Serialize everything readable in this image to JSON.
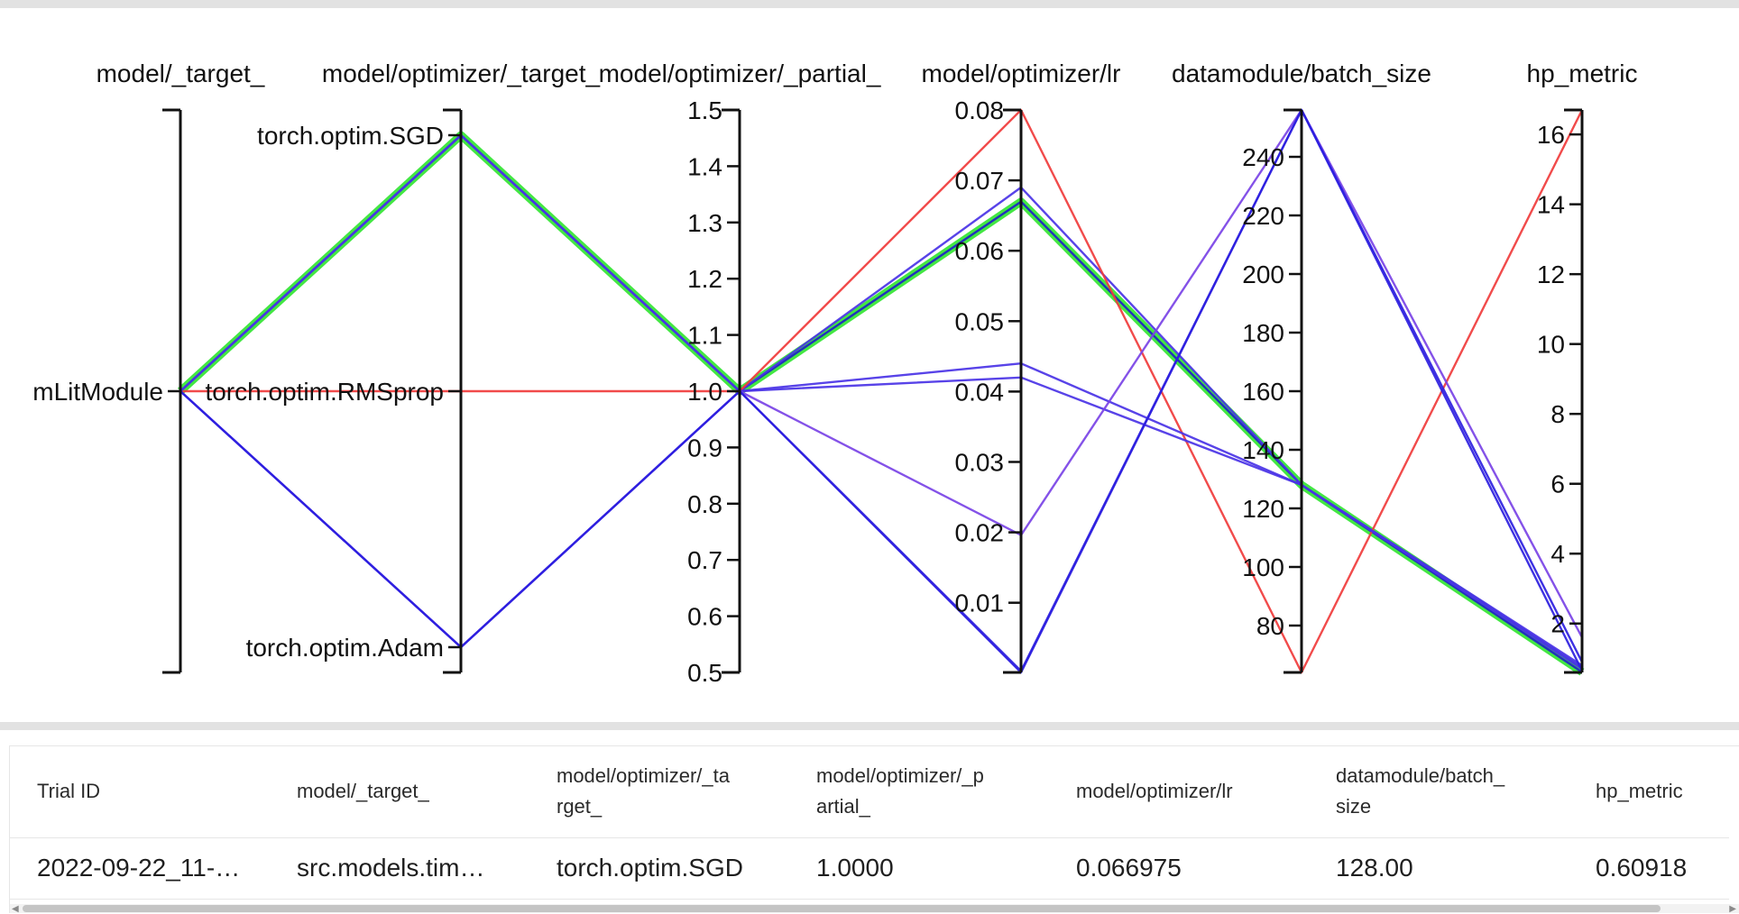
{
  "chart_data": {
    "type": "parallel_coordinates",
    "colors": {
      "highlight": "#39e639",
      "red": "#f03c3c",
      "blue": "#2e1fe0",
      "mid_blue": "#4a33e6",
      "violet": "#7a43e6"
    },
    "axes": [
      {
        "name": "model/_target_",
        "kind": "categorical",
        "categories": [
          "mLitModule"
        ],
        "tick_labels": [
          "mLitModule"
        ]
      },
      {
        "name": "model/optimizer/_target_",
        "kind": "categorical",
        "categories": [
          "torch.optim.Adam",
          "torch.optim.RMSprop",
          "torch.optim.SGD"
        ],
        "tick_labels": [
          "torch.optim.Adam",
          "torch.optim.RMSprop",
          "torch.optim.SGD"
        ]
      },
      {
        "name": "model/optimizer/_partial_",
        "kind": "numeric",
        "range": [
          0.5,
          1.5
        ],
        "tick_labels": [
          "0.5",
          "0.6",
          "0.7",
          "0.8",
          "0.9",
          "1.0",
          "1.1",
          "1.2",
          "1.3",
          "1.4",
          "1.5"
        ]
      },
      {
        "name": "model/optimizer/lr",
        "kind": "numeric",
        "range": [
          0.0001,
          0.08
        ],
        "tick_labels": [
          "0.01",
          "0.02",
          "0.03",
          "0.04",
          "0.05",
          "0.06",
          "0.07",
          "0.08"
        ]
      },
      {
        "name": "datamodule/batch_size",
        "kind": "numeric",
        "range": [
          64,
          256
        ],
        "tick_labels": [
          "80",
          "100",
          "120",
          "140",
          "160",
          "180",
          "200",
          "220",
          "240"
        ]
      },
      {
        "name": "hp_metric",
        "kind": "numeric",
        "range": [
          0.6,
          16.7
        ],
        "tick_labels": [
          "2",
          "4",
          "6",
          "8",
          "10",
          "12",
          "14",
          "16"
        ]
      }
    ],
    "series": [
      {
        "values": [
          "mLitModule",
          "torch.optim.SGD",
          1.0,
          0.066975,
          128,
          0.60918
        ],
        "color": "#39e639",
        "highlight": true
      },
      {
        "values": [
          "mLitModule",
          "torch.optim.SGD",
          1.0,
          0.066975,
          128,
          0.60918
        ],
        "color": "#1f1fc8"
      },
      {
        "values": [
          "mLitModule",
          "torch.optim.SGD",
          1.0,
          0.069,
          128,
          0.8
        ],
        "color": "#4a33e6"
      },
      {
        "values": [
          "mLitModule",
          "torch.optim.RMSprop",
          1.0,
          0.08,
          64,
          16.7
        ],
        "color": "#f03c3c"
      },
      {
        "values": [
          "mLitModule",
          "torch.optim.SGD",
          1.0,
          0.044,
          128,
          0.7
        ],
        "color": "#4a33e6"
      },
      {
        "values": [
          "mLitModule",
          "torch.optim.SGD",
          1.0,
          0.042,
          128,
          0.75
        ],
        "color": "#4a33e6"
      },
      {
        "values": [
          "mLitModule",
          "torch.optim.Adam",
          1.0,
          0.0196,
          256,
          1.6
        ],
        "color": "#7a43e6"
      },
      {
        "values": [
          "mLitModule",
          "torch.optim.Adam",
          1.0,
          0.0001,
          256,
          0.9
        ],
        "color": "#2e1fe0"
      },
      {
        "values": [
          "mLitModule",
          "torch.optim.Adam",
          1.0,
          0.0003,
          256,
          0.65
        ],
        "color": "#2e1fe0"
      }
    ]
  },
  "table": {
    "headers": [
      "Trial ID",
      "model/_target_",
      "model/optimizer/_target_",
      "model/optimizer/_partial_",
      "model/optimizer/lr",
      "datamodule/batch_size",
      "hp_metric"
    ],
    "header_lines": [
      [
        "Trial ID"
      ],
      [
        "model/_target_"
      ],
      [
        "model/optimizer/_ta",
        "rget_"
      ],
      [
        "model/optimizer/_p",
        "artial_"
      ],
      [
        "model/optimizer/lr"
      ],
      [
        "datamodule/batch_",
        "size"
      ],
      [
        "hp_metric"
      ]
    ],
    "rows": [
      [
        "2022-09-22_11-…",
        "src.models.tim…",
        "torch.optim.SGD",
        "1.0000",
        "0.066975",
        "128.00",
        "0.60918"
      ]
    ]
  }
}
